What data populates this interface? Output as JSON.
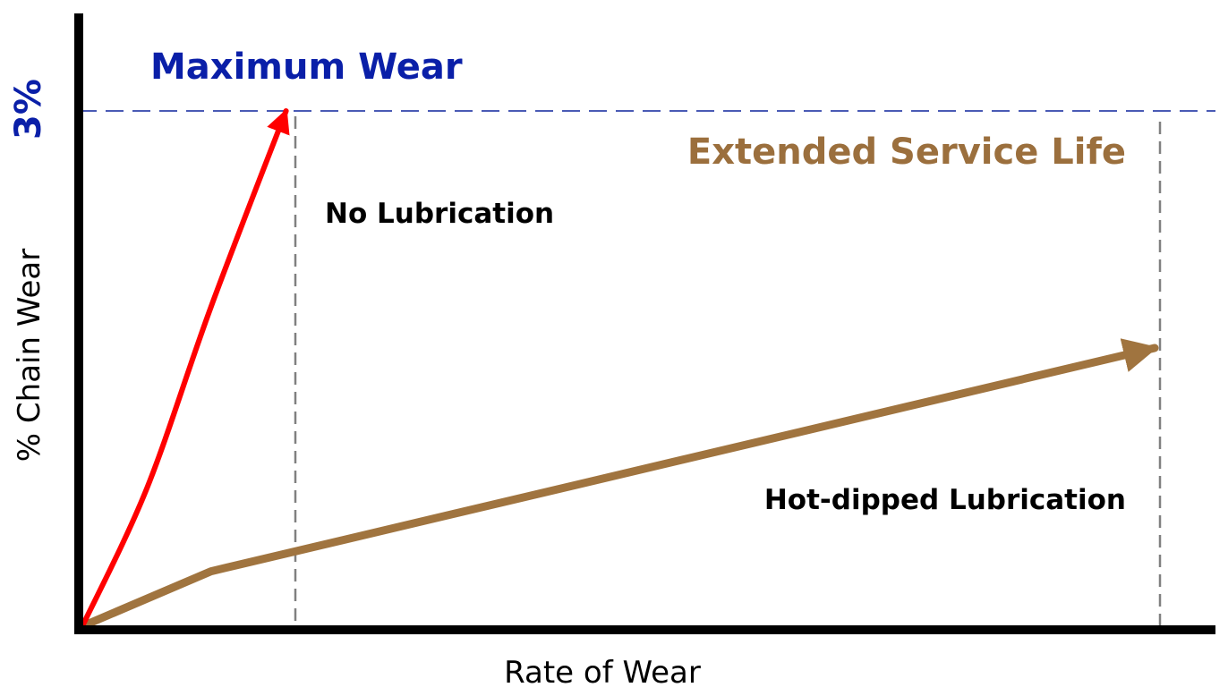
{
  "chart_data": {
    "type": "line",
    "xlabel": "Rate of Wear",
    "ylabel": "% Chain Wear",
    "max_wear_label": "Maximum Wear",
    "max_wear_value": "3%",
    "extended_label": "Extended Service Life",
    "colors": {
      "axis": "#000000",
      "max_line": "#4a5bb5",
      "max_text": "#0a1fa8",
      "extended_text": "#9b6f3d",
      "no_lube": "#ff0000",
      "hot_dipped": "#a0743f",
      "vertical_guides": "#808080"
    },
    "series": [
      {
        "name": "No Lubrication",
        "color": "#ff0000",
        "points": [
          [
            0,
            0
          ],
          [
            0.06,
            0.8
          ],
          [
            0.12,
            1.86
          ],
          [
            0.19,
            3.0
          ]
        ]
      },
      {
        "name": "Hot-dipped Lubrication",
        "color": "#a0743f",
        "points": [
          [
            0,
            0
          ],
          [
            0.12,
            0.32
          ],
          [
            1.0,
            1.62
          ]
        ]
      }
    ]
  }
}
